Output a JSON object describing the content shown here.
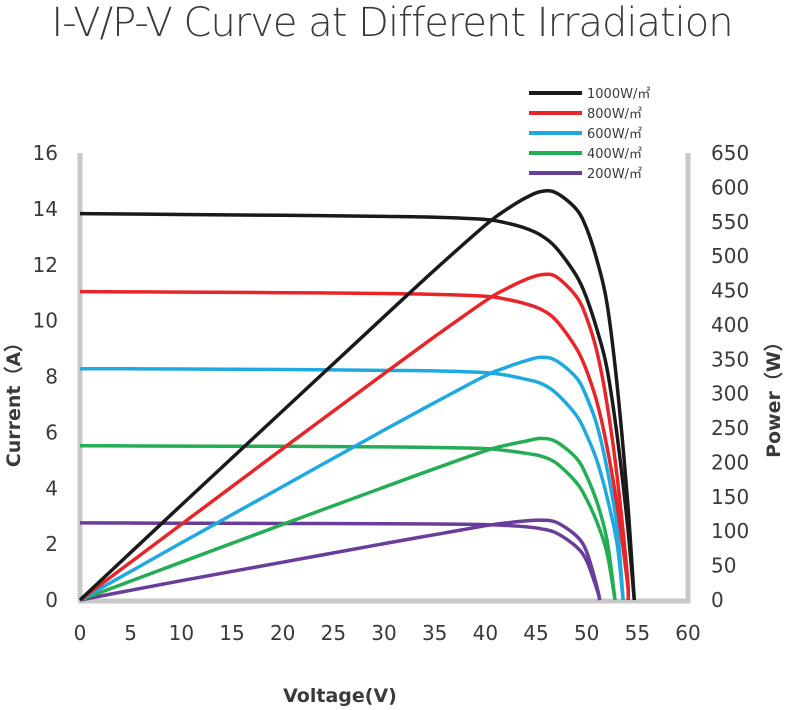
{
  "chart_data": {
    "type": "line",
    "title": "I-V/P-V Curve at Different Irradiation",
    "xlabel": "Voltage(V)",
    "ylabel": "Current（A）",
    "y2label": "Power（W）",
    "xlim": [
      0,
      60
    ],
    "ylim": [
      0,
      16
    ],
    "y2lim": [
      0,
      650
    ],
    "xticks": [
      "0",
      "5",
      "10",
      "15",
      "20",
      "25",
      "30",
      "35",
      "40",
      "45",
      "50",
      "55",
      "60"
    ],
    "yticks": [
      "0",
      "2",
      "4",
      "6",
      "8",
      "10",
      "12",
      "14",
      "16"
    ],
    "y2ticks": [
      "0",
      "50",
      "100",
      "150",
      "200",
      "250",
      "300",
      "350",
      "400",
      "450",
      "500",
      "550",
      "600",
      "650"
    ],
    "grid": false,
    "legend_position": "top-right",
    "x": [
      0,
      10,
      20,
      30,
      35,
      40,
      42,
      44,
      45.5,
      47,
      49,
      50,
      51,
      52,
      53,
      54
    ],
    "series": [
      {
        "name": "1000W/㎡",
        "color": "#1a1a1a",
        "voc": 54.7,
        "current": [
          13.83,
          13.8,
          13.77,
          13.73,
          13.7,
          13.62,
          13.5,
          13.3,
          13.05,
          12.6,
          11.6,
          10.8,
          9.7,
          8.3,
          5.9,
          2.8
        ],
        "power": [
          0,
          138,
          275,
          412,
          480,
          545,
          567,
          585,
          594,
          592,
          568,
          540,
          495,
          432,
          313,
          151
        ]
      },
      {
        "name": "800W/㎡",
        "color": "#e8262a",
        "voc": 54.1,
        "current": [
          11.04,
          11.02,
          11.0,
          10.97,
          10.94,
          10.87,
          10.77,
          10.6,
          10.4,
          10.0,
          9.0,
          8.2,
          7.1,
          5.5,
          3.4,
          0.7
        ],
        "power": [
          0,
          110,
          220,
          329,
          383,
          435,
          452,
          466,
          473,
          470,
          441,
          410,
          362,
          286,
          180,
          38
        ]
      },
      {
        "name": "600W/㎡",
        "color": "#1fa9e1",
        "voc": 53.6,
        "current": [
          8.28,
          8.27,
          8.25,
          8.22,
          8.2,
          8.14,
          8.05,
          7.9,
          7.75,
          7.4,
          6.6,
          5.9,
          5.0,
          3.7,
          2.0,
          0
        ],
        "power": [
          0,
          83,
          165,
          247,
          287,
          326,
          338,
          348,
          353,
          348,
          323,
          295,
          255,
          192,
          106,
          0
        ]
      },
      {
        "name": "400W/㎡",
        "color": "#25ad56",
        "voc": 52.8,
        "current": [
          5.52,
          5.51,
          5.5,
          5.48,
          5.46,
          5.42,
          5.35,
          5.25,
          5.15,
          4.9,
          4.2,
          3.6,
          2.8,
          1.7,
          0,
          0
        ],
        "power": [
          0,
          55,
          110,
          164,
          191,
          217,
          225,
          231,
          235,
          230,
          206,
          180,
          143,
          88,
          0,
          0
        ]
      },
      {
        "name": "200W/㎡",
        "color": "#6a3d9a",
        "voc": 51.3,
        "current": [
          2.76,
          2.75,
          2.74,
          2.73,
          2.72,
          2.7,
          2.67,
          2.62,
          2.55,
          2.4,
          1.9,
          1.4,
          0.4,
          0,
          0,
          0
        ],
        "power": [
          0,
          28,
          55,
          82,
          95,
          108,
          112,
          115,
          116,
          113,
          93,
          70,
          20,
          0,
          0,
          0
        ]
      }
    ]
  }
}
